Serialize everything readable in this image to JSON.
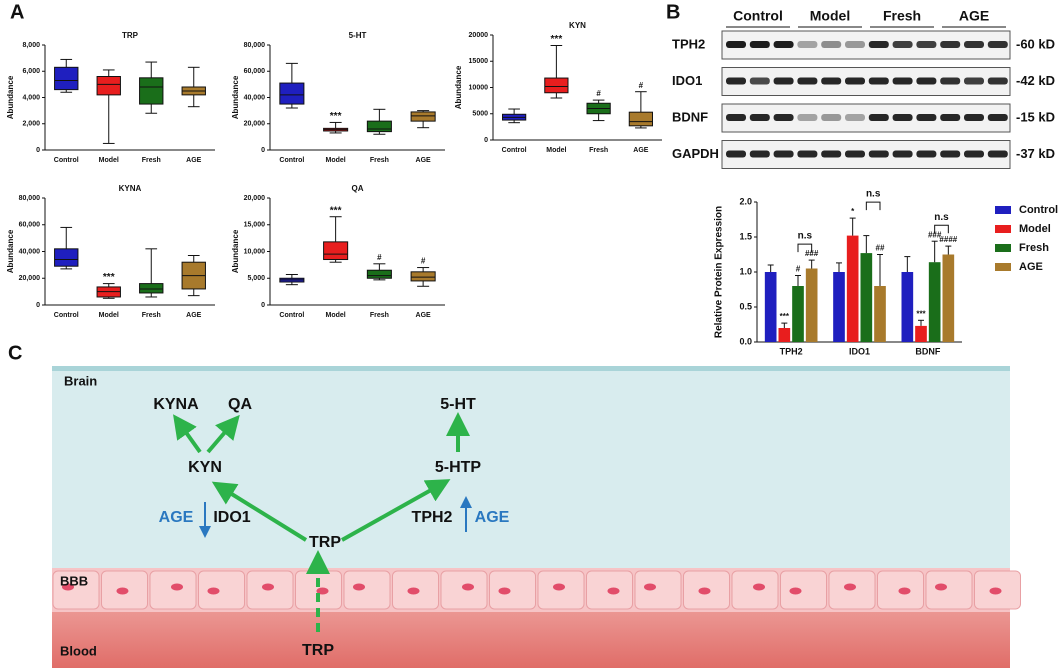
{
  "panels": [
    "A",
    "B",
    "C"
  ],
  "chart_data": [
    {
      "type": "box",
      "title": "TRP",
      "y_label": "Abundance",
      "categories": [
        "Control",
        "Model",
        "Fresh",
        "AGE"
      ],
      "colors": [
        "#1f1fbf",
        "#e81e1e",
        "#1a6e1a",
        "#a87a2c"
      ],
      "boxes": [
        {
          "min": 4400,
          "q1": 4600,
          "median": 5300,
          "q3": 6300,
          "max": 6900
        },
        {
          "min": 500,
          "q1": 4200,
          "median": 5000,
          "q3": 5600,
          "max": 6100
        },
        {
          "min": 2800,
          "q1": 3500,
          "median": 4800,
          "q3": 5500,
          "max": 6700
        },
        {
          "min": 3300,
          "q1": 4200,
          "median": 4500,
          "q3": 4800,
          "max": 6300
        }
      ],
      "annotations": [
        null,
        null,
        null,
        null
      ],
      "ylim": [
        0,
        8000
      ],
      "yticks": [
        0,
        {
          "value": 2000,
          "label": "2,000"
        },
        {
          "value": 4000,
          "label": "4,000"
        },
        {
          "value": 6000,
          "label": "6,000"
        },
        {
          "value": 8000,
          "label": "8,000"
        }
      ]
    },
    {
      "type": "box",
      "title": "5-HT",
      "y_label": "Abundance",
      "categories": [
        "Control",
        "Model",
        "Fresh",
        "AGE"
      ],
      "colors": [
        "#1f1fbf",
        "#e81e1e",
        "#1a6e1a",
        "#a87a2c"
      ],
      "boxes": [
        {
          "min": 32000,
          "q1": 35000,
          "median": 42000,
          "q3": 51000,
          "max": 66000
        },
        {
          "min": 13000,
          "q1": 14500,
          "median": 15500,
          "q3": 16500,
          "max": 21000
        },
        {
          "min": 12000,
          "q1": 14000,
          "median": 16000,
          "q3": 22000,
          "max": 31000
        },
        {
          "min": 17000,
          "q1": 22000,
          "median": 26000,
          "q3": 29000,
          "max": 30000
        }
      ],
      "annotations": [
        null,
        "***",
        null,
        null
      ],
      "ylim": [
        0,
        80000
      ],
      "yticks": [
        0,
        {
          "value": 20000,
          "label": "20,000"
        },
        {
          "value": 40000,
          "label": "40,000"
        },
        {
          "value": 60000,
          "label": "60,000"
        },
        {
          "value": 80000,
          "label": "80,000"
        }
      ]
    },
    {
      "type": "box",
      "title": "KYN",
      "y_label": "Abundance",
      "categories": [
        "Control",
        "Model",
        "Fresh",
        "AGE"
      ],
      "colors": [
        "#1f1fbf",
        "#e81e1e",
        "#1a6e1a",
        "#a87a2c"
      ],
      "boxes": [
        {
          "min": 3300,
          "q1": 3800,
          "median": 4300,
          "q3": 4900,
          "max": 5900
        },
        {
          "min": 8000,
          "q1": 9000,
          "median": 10200,
          "q3": 11800,
          "max": 18000
        },
        {
          "min": 3700,
          "q1": 5000,
          "median": 6000,
          "q3": 7000,
          "max": 7600
        },
        {
          "min": 2300,
          "q1": 2700,
          "median": 3500,
          "q3": 5300,
          "max": 9200
        }
      ],
      "annotations": [
        null,
        "***",
        "#",
        "#"
      ],
      "ylim": [
        0,
        20000
      ],
      "yticks": [
        0,
        5000,
        10000,
        15000,
        20000
      ]
    },
    {
      "type": "box",
      "title": "KYNA",
      "y_label": "Abundance",
      "categories": [
        "Control",
        "Model",
        "Fresh",
        "AGE"
      ],
      "colors": [
        "#1f1fbf",
        "#e81e1e",
        "#1a6e1a",
        "#a87a2c"
      ],
      "boxes": [
        {
          "min": 27000,
          "q1": 29000,
          "median": 34000,
          "q3": 42000,
          "max": 58000
        },
        {
          "min": 5000,
          "q1": 6000,
          "median": 10000,
          "q3": 13500,
          "max": 16000
        },
        {
          "min": 6000,
          "q1": 9000,
          "median": 12000,
          "q3": 16000,
          "max": 42000
        },
        {
          "min": 7000,
          "q1": 12000,
          "median": 22000,
          "q3": 32000,
          "max": 37000
        }
      ],
      "annotations": [
        null,
        "***",
        null,
        null
      ],
      "ylim": [
        0,
        80000
      ],
      "yticks": [
        0,
        {
          "value": 20000,
          "label": "20,000"
        },
        {
          "value": 40000,
          "label": "40,000"
        },
        {
          "value": 60000,
          "label": "60,000"
        },
        {
          "value": 80000,
          "label": "80,000"
        }
      ]
    },
    {
      "type": "box",
      "title": "QA",
      "y_label": "Abundance",
      "categories": [
        "Control",
        "Model",
        "Fresh",
        "AGE"
      ],
      "colors": [
        "#1f1fbf",
        "#e81e1e",
        "#1a6e1a",
        "#a87a2c"
      ],
      "boxes": [
        {
          "min": 3800,
          "q1": 4300,
          "median": 4700,
          "q3": 5000,
          "max": 5700
        },
        {
          "min": 8000,
          "q1": 8500,
          "median": 9500,
          "q3": 11800,
          "max": 16500
        },
        {
          "min": 4700,
          "q1": 5000,
          "median": 5500,
          "q3": 6500,
          "max": 7700
        },
        {
          "min": 3500,
          "q1": 4500,
          "median": 5200,
          "q3": 6200,
          "max": 7000
        }
      ],
      "annotations": [
        null,
        "***",
        "#",
        "#"
      ],
      "ylim": [
        0,
        20000
      ],
      "yticks": [
        0,
        {
          "value": 5000,
          "label": "5,000"
        },
        {
          "value": 10000,
          "label": "10,000"
        },
        {
          "value": 15000,
          "label": "15,000"
        },
        {
          "value": 20000,
          "label": "20,000"
        }
      ]
    },
    {
      "type": "bar",
      "y_label": "Relative Protein Expression",
      "categories": [
        "TPH2",
        "IDO1",
        "BDNF"
      ],
      "series": [
        {
          "name": "Control",
          "color": "#1f1fbf",
          "values": [
            1.0,
            1.0,
            1.0
          ],
          "errors": [
            0.1,
            0.13,
            0.22
          ],
          "annotations": [
            null,
            null,
            null
          ]
        },
        {
          "name": "Model",
          "color": "#e81e1e",
          "values": [
            0.2,
            1.52,
            0.23
          ],
          "errors": [
            0.07,
            0.25,
            0.08
          ],
          "annotations": [
            "***",
            "*",
            "***"
          ]
        },
        {
          "name": "Fresh",
          "color": "#1a6e1a",
          "values": [
            0.8,
            1.27,
            1.14
          ],
          "errors": [
            0.15,
            0.25,
            0.3
          ],
          "annotations": [
            "#",
            null,
            "###"
          ]
        },
        {
          "name": "AGE",
          "color": "#a87a2c",
          "values": [
            1.05,
            0.8,
            1.25
          ],
          "errors": [
            0.12,
            0.45,
            0.12
          ],
          "annotations": [
            "###",
            "##",
            "####"
          ]
        }
      ],
      "brackets": [
        "n.s",
        "n.s",
        "n.s"
      ],
      "ylim": [
        0,
        2.0
      ],
      "yticks": [
        {
          "value": 0,
          "label": "0.0"
        },
        {
          "value": 0.5,
          "label": "0.5"
        },
        {
          "value": 1.0,
          "label": "1.0"
        },
        {
          "value": 1.5,
          "label": "1.5"
        },
        {
          "value": 2.0,
          "label": "2.0"
        }
      ]
    }
  ],
  "blot": {
    "groups": [
      "Control",
      "Model",
      "Fresh",
      "AGE"
    ],
    "rows": [
      {
        "name": "TPH2",
        "size": "-60 kD"
      },
      {
        "name": "IDO1",
        "size": "-42 kD"
      },
      {
        "name": "BDNF",
        "size": "-15 kD"
      },
      {
        "name": "GAPDH",
        "size": "-37 kD"
      }
    ]
  },
  "diagram": {
    "regions": [
      "Brain",
      "BBB",
      "Blood"
    ],
    "nodes": {
      "kyna": "KYNA",
      "qa": "QA",
      "serotonin": "5-HT",
      "kyn": "KYN",
      "htp": "5-HTP",
      "trp": "TRP",
      "trp_blood": "TRP"
    },
    "enzymes": {
      "ido1": "IDO1",
      "tph2": "TPH2",
      "age_ido1": "AGE",
      "age_tph2": "AGE"
    }
  }
}
